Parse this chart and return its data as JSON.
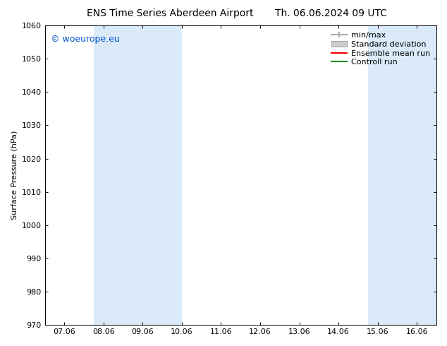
{
  "title_left": "ENS Time Series Aberdeen Airport",
  "title_right": "Th. 06.06.2024 09 UTC",
  "ylabel": "Surface Pressure (hPa)",
  "ylim": [
    970,
    1060
  ],
  "yticks": [
    970,
    980,
    990,
    1000,
    1010,
    1020,
    1030,
    1040,
    1050,
    1060
  ],
  "xtick_labels": [
    "07.06",
    "08.06",
    "09.06",
    "10.06",
    "11.06",
    "12.06",
    "13.06",
    "14.06",
    "15.06",
    "16.06"
  ],
  "xtick_positions": [
    0,
    1,
    2,
    3,
    4,
    5,
    6,
    7,
    8,
    9
  ],
  "xlim": [
    -0.5,
    9.5
  ],
  "watermark": "© woeurope.eu",
  "watermark_color": "#0055cc",
  "shaded_bands": [
    {
      "xmin": 0.75,
      "xmax": 3.0,
      "color": "#daeaf8"
    },
    {
      "xmin": 7.75,
      "xmax": 9.5,
      "color": "#daeaf8"
    }
  ],
  "legend_entries": [
    {
      "label": "min/max",
      "color": "#aaaaaa",
      "style": "tickline"
    },
    {
      "label": "Standard deviation",
      "color": "#cccccc",
      "style": "box"
    },
    {
      "label": "Ensemble mean run",
      "color": "#ff0000",
      "style": "line"
    },
    {
      "label": "Controll run",
      "color": "#228b22",
      "style": "line"
    }
  ],
  "bg_color": "#ffffff",
  "title_fontsize": 10,
  "axis_fontsize": 8,
  "watermark_fontsize": 9,
  "legend_fontsize": 8
}
